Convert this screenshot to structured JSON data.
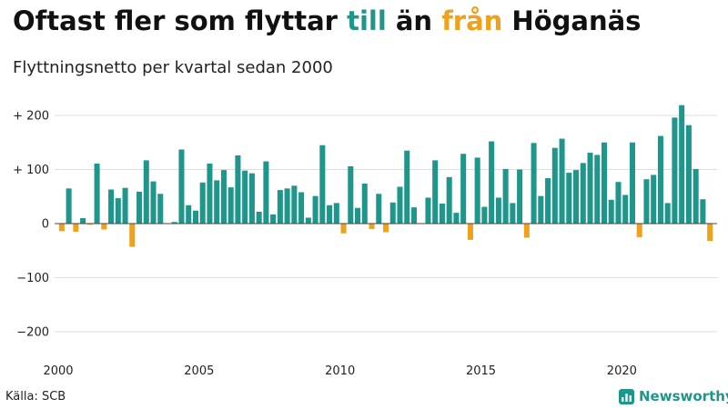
{
  "title": {
    "part1": "Oftast fler som flyttar ",
    "highlight_in": "till",
    "part2": " än ",
    "highlight_out": "från",
    "part3": " Höganäs"
  },
  "subtitle": "Flyttningsnetto per kvartal sedan 2000",
  "source": "Källa: SCB",
  "brand": "Newsworthy",
  "colors": {
    "positive": "#1f968b",
    "negative": "#f0a11c",
    "grid": "#dddddd",
    "zero": "#444444"
  },
  "chart_data": {
    "type": "bar",
    "xlabel": "",
    "ylabel": "",
    "ylim": [
      -200,
      220
    ],
    "y_ticks": [
      {
        "value": 200,
        "label": "+ 200"
      },
      {
        "value": 100,
        "label": "+ 100"
      },
      {
        "value": 0,
        "label": "0"
      },
      {
        "value": -100,
        "label": "−100"
      },
      {
        "value": -200,
        "label": "−200"
      }
    ],
    "x_ticks": [
      "2000",
      "2005",
      "2010",
      "2015",
      "2020"
    ],
    "start_year": 2000,
    "grid": true,
    "values": [
      -14,
      65,
      -15,
      10,
      -2,
      111,
      -11,
      63,
      47,
      66,
      -43,
      59,
      117,
      78,
      55,
      0,
      3,
      137,
      34,
      24,
      76,
      111,
      80,
      99,
      67,
      126,
      98,
      93,
      22,
      115,
      17,
      62,
      65,
      70,
      58,
      11,
      51,
      145,
      34,
      38,
      -18,
      106,
      29,
      74,
      -10,
      55,
      -16,
      39,
      68,
      135,
      30,
      0,
      48,
      117,
      37,
      86,
      20,
      129,
      -30,
      122,
      31,
      152,
      48,
      101,
      38,
      100,
      -26,
      149,
      51,
      84,
      140,
      157,
      94,
      99,
      112,
      131,
      127,
      150,
      44,
      77,
      53,
      150,
      -25,
      82,
      90,
      162,
      38,
      196,
      219,
      182,
      101,
      45,
      -32
    ]
  }
}
